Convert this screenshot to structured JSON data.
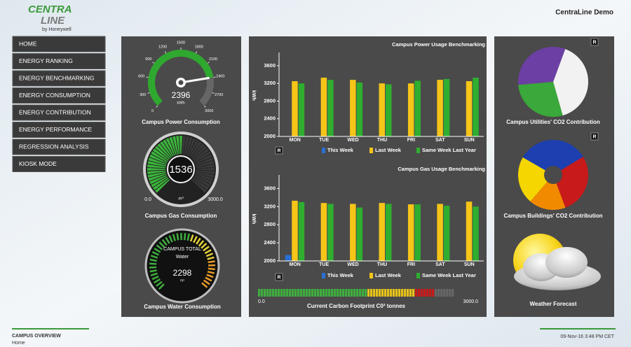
{
  "header": {
    "logo_left": "CENTRA",
    "logo_right": "LINE",
    "logo_sub": "by Honeywell",
    "title": "CentraLine Demo"
  },
  "nav": [
    "HOME",
    "ENERGY RANKING",
    "ENERGY BENCHMARKING",
    "ENERGY CONSUMPTION",
    "ENERGY CONTRIBUTION",
    "ENERGY PERFORMANCE",
    "REGRESSION ANALYSIS",
    "KIOSK MODE"
  ],
  "gauges": [
    {
      "label": "Campus Power Consumption",
      "value": 2396,
      "unit": "kWh",
      "ticks": [
        0,
        300,
        600,
        900,
        1200,
        1500,
        1800,
        2100,
        2400,
        2700,
        3000
      ],
      "color": "#2fa82f"
    },
    {
      "label": "Campus Gas Consumption",
      "value": 1536,
      "unit": "m³",
      "ticks": [
        {
          "value": 0,
          "label": "0.0"
        },
        {
          "value": 3000,
          "label": "3000.0"
        }
      ],
      "color": "#3cb43c"
    },
    {
      "label": "Campus Water Consumption",
      "caption": "CAMPUS TOTAL",
      "name": "Water",
      "value": 2298,
      "unit": "m³"
    }
  ],
  "chart_data": [
    {
      "type": "bar",
      "title": "Campus Power Usage Benchmarking",
      "y_label": "kWh",
      "categories": [
        "MON",
        "TUE",
        "WED",
        "THU",
        "FRI",
        "SAT",
        "SUN"
      ],
      "series": [
        {
          "name": "This Week",
          "color": "#2a6fd6",
          "values": [
            null,
            null,
            null,
            null,
            null,
            null,
            null
          ]
        },
        {
          "name": "Last Week",
          "color": "#f5c518",
          "values": [
            3250,
            3330,
            3280,
            3200,
            3200,
            3280,
            3250
          ]
        },
        {
          "name": "Same Week Last Year",
          "color": "#2fae2f",
          "values": [
            3200,
            3280,
            3220,
            3180,
            3260,
            3300,
            3330
          ]
        }
      ],
      "ylim": [
        2000,
        3900
      ],
      "yticks": [
        2000,
        2400,
        2800,
        3200,
        3600
      ]
    },
    {
      "type": "bar",
      "title": "Campus Gas Usage Benchmarking",
      "y_label": "kWh",
      "categories": [
        "MON",
        "TUE",
        "WED",
        "THU",
        "FRI",
        "SAT",
        "SUN"
      ],
      "series": [
        {
          "name": "This Week",
          "color": "#2a6fd6",
          "values": [
            2130,
            null,
            null,
            null,
            null,
            null,
            null
          ]
        },
        {
          "name": "Last Week",
          "color": "#f5c518",
          "values": [
            3330,
            3280,
            3260,
            3280,
            3250,
            3260,
            3310
          ]
        },
        {
          "name": "Same Week Last Year",
          "color": "#2fae2f",
          "values": [
            3300,
            3260,
            3180,
            3260,
            3250,
            3220,
            3200
          ]
        }
      ],
      "ylim": [
        2000,
        3900
      ],
      "yticks": [
        2000,
        2400,
        2800,
        3200,
        3600
      ]
    },
    {
      "type": "pie",
      "title": "Campus Utilities' CO2 Contribution",
      "categories": [
        null,
        null,
        null
      ],
      "values": [
        32,
        40,
        28
      ],
      "colors": [
        "#6b3fa3",
        "#f2f2f2",
        "#3aa83a"
      ]
    },
    {
      "type": "pie",
      "title": "Campus Buildings' CO2 Contribution",
      "categories": [
        null,
        null,
        null,
        null
      ],
      "values": [
        33,
        28,
        17,
        22
      ],
      "colors": [
        "#1d3fb0",
        "#c81a1a",
        "#f28a00",
        "#f5d600"
      ]
    }
  ],
  "carbon": {
    "label": "Current Carbon Footprint C0² tonnes",
    "value": 2700,
    "ticks": [
      {
        "value": 0,
        "label": "0.0"
      },
      {
        "value": 3000,
        "label": "3000.0"
      }
    ]
  },
  "weather": {
    "label": "Weather Forecast"
  },
  "reset_buttons": [
    "R",
    "R",
    "R",
    "R"
  ],
  "footer": {
    "section": "CAMPUS OVERVIEW",
    "page": "Home",
    "timestamp": "09-Nov-16 3:48 PM CET"
  }
}
